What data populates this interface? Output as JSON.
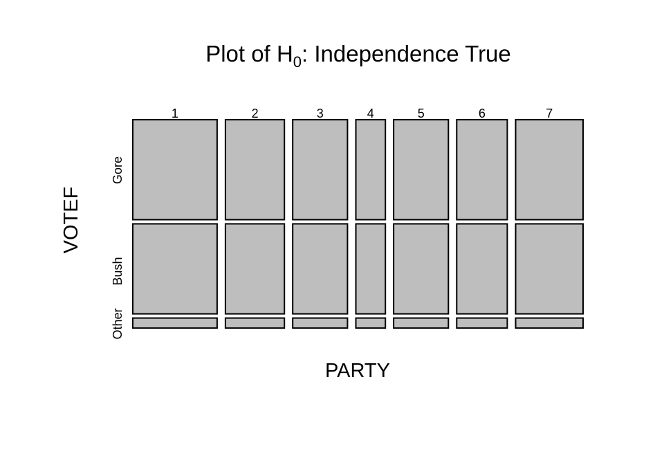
{
  "chart_data": {
    "type": "mosaic",
    "title": {
      "prefix": "Plot of H",
      "subscript": "0",
      "suffix": ":  Independence True"
    },
    "xlabel": "PARTY",
    "ylabel": "VOTEF",
    "columns": [
      {
        "label": "1",
        "share": 0.2
      },
      {
        "label": "2",
        "share": 0.14
      },
      {
        "label": "3",
        "share": 0.13
      },
      {
        "label": "4",
        "share": 0.07
      },
      {
        "label": "5",
        "share": 0.13
      },
      {
        "label": "6",
        "share": 0.12
      },
      {
        "label": "7",
        "share": 0.16
      }
    ],
    "rows": [
      {
        "label": "Gore",
        "share": 0.5
      },
      {
        "label": "Bush",
        "share": 0.45
      },
      {
        "label": "Other",
        "share": 0.05
      }
    ],
    "tile_color": "#bebebe",
    "border_color": "#000000"
  }
}
